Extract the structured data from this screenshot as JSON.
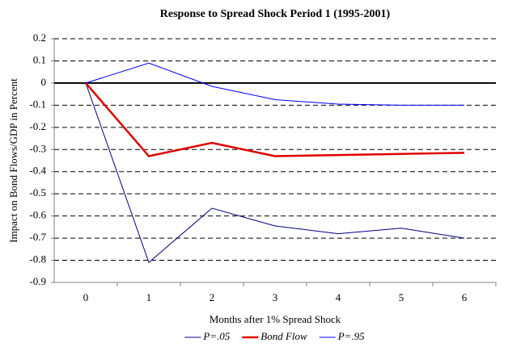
{
  "chart_data": {
    "type": "line",
    "title": "Response to Spread Shock Period 1 (1995-2001)",
    "x_label": "Months after 1% Spread Shock",
    "y_label": "Impact on Bond Flows/GDP in Percent",
    "categories": [
      "0",
      "1",
      "2",
      "3",
      "4",
      "5",
      "6"
    ],
    "series": [
      {
        "name": "P=.05",
        "color": "#000080",
        "width": 1,
        "values": [
          0,
          -0.81,
          -0.565,
          -0.645,
          -0.68,
          -0.655,
          -0.7
        ]
      },
      {
        "name": "Bond Flow",
        "color": "#e00000",
        "width": 2.5,
        "values": [
          0,
          -0.33,
          -0.27,
          -0.33,
          -0.325,
          -0.32,
          -0.315
        ]
      },
      {
        "name": "P=.95",
        "color": "#0000ff",
        "width": 1,
        "values": [
          0,
          0.09,
          -0.015,
          -0.075,
          -0.095,
          -0.1,
          -0.1
        ]
      }
    ],
    "ylim": [
      -0.9,
      0.2
    ],
    "yticks": [
      0.2,
      0.1,
      0,
      -0.1,
      -0.2,
      -0.3,
      -0.4,
      -0.5,
      -0.6,
      -0.7,
      -0.8,
      -0.9
    ],
    "grid": true,
    "legend": "bottom"
  }
}
